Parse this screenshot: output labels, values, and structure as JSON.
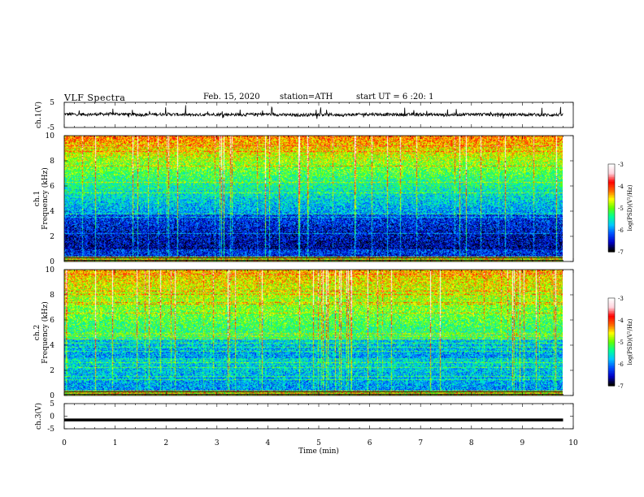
{
  "header": {
    "title": "VLF Spectra",
    "date": "Feb. 15, 2020",
    "station": "station=ATH",
    "start": "start UT =  6 :20: 1"
  },
  "colors": {
    "spectrogram_scale": [
      "#000000",
      "#0000c8",
      "#0050ff",
      "#00c8ff",
      "#00ff96",
      "#64ff00",
      "#ffff00",
      "#ff6400",
      "#ff0000",
      "#ffd2dc",
      "#ffffff"
    ],
    "trace": "#000000"
  },
  "chart_data": [
    {
      "type": "line",
      "name": "ch1-waveform",
      "ylabel": "ch.1(V)",
      "ylim": [
        -5,
        5
      ],
      "yticks": [
        "5",
        "-5"
      ],
      "xlim": [
        0,
        10
      ],
      "x": [
        0,
        0.5,
        1,
        1.5,
        2,
        2.5,
        3,
        3.5,
        4,
        4.5,
        5,
        5.5,
        6,
        6.5,
        7,
        7.5,
        8,
        8.5,
        9,
        9.5,
        9.8
      ],
      "y": [
        0.3,
        0.2,
        0.4,
        0.1,
        0.3,
        0.0,
        0.2,
        0.1,
        0.3,
        -0.1,
        0.2,
        0.0,
        0.3,
        0.1,
        0.2,
        0.0,
        0.3,
        0.1,
        0.2,
        0.0,
        0.1
      ]
    },
    {
      "type": "heatmap",
      "name": "ch1-spectrogram",
      "ylabel_channel": "ch.1",
      "ylabel": "Frequency (kHz)",
      "ylim": [
        0,
        10
      ],
      "yticks": [
        "0",
        "2",
        "4",
        "6",
        "8",
        "10"
      ],
      "xlim": [
        0,
        9.8
      ],
      "colorbar": {
        "label": "log(PSD)(V²/Hz)",
        "range": [
          -7,
          -3
        ],
        "ticks": [
          "-3",
          "-4",
          "-5",
          "-6",
          "-7"
        ]
      }
    },
    {
      "type": "heatmap",
      "name": "ch2-spectrogram",
      "ylabel_channel": "ch.2",
      "ylabel": "Frequency (kHz)",
      "ylim": [
        0,
        10
      ],
      "yticks": [
        "0",
        "2",
        "4",
        "6",
        "8",
        "10"
      ],
      "xlim": [
        0,
        9.8
      ],
      "colorbar": {
        "label": "log(PSD)(V²/Hz)",
        "range": [
          -7,
          -3
        ],
        "ticks": [
          "-3",
          "-4",
          "-5",
          "-6",
          "-7"
        ]
      }
    },
    {
      "type": "line",
      "name": "ch3-waveform",
      "ylabel": "ch.3(V)",
      "ylim": [
        -5,
        5
      ],
      "yticks": [
        "5",
        "0",
        "-5"
      ],
      "xlim": [
        0,
        10
      ],
      "x": [
        0,
        9.8
      ],
      "y": [
        -1.5,
        -1.5
      ]
    }
  ],
  "x_axis": {
    "label": "Time (min)",
    "ticks": [
      "0",
      "1",
      "2",
      "3",
      "4",
      "5",
      "6",
      "7",
      "8",
      "9",
      "10"
    ]
  }
}
